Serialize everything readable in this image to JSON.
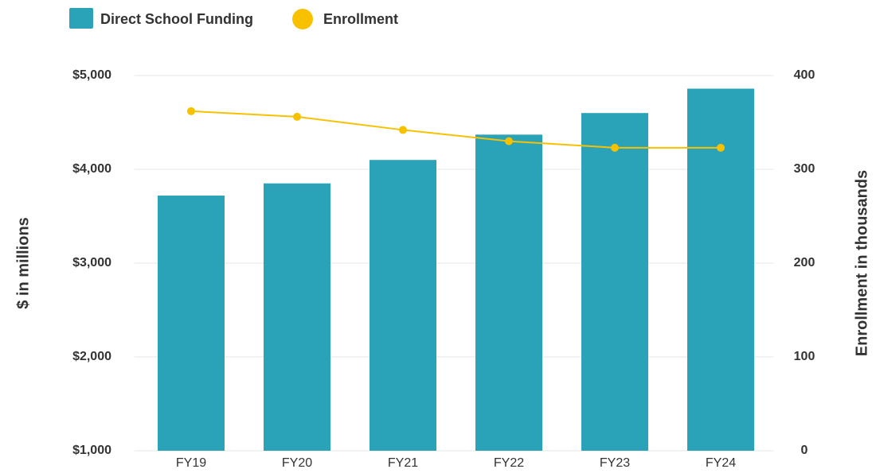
{
  "chart_data": {
    "type": "bar_line",
    "categories": [
      "FY19",
      "FY20",
      "FY21",
      "FY22",
      "FY23",
      "FY24"
    ],
    "series": [
      {
        "name": "Direct School Funding",
        "type": "bar",
        "color": "#2aa3b9",
        "axis": "y",
        "values": [
          3720,
          3850,
          4100,
          4370,
          4600,
          4860
        ]
      },
      {
        "name": "Enrollment",
        "type": "line",
        "color": "#f7c100",
        "axis": "y2",
        "values": [
          362,
          356,
          342,
          330,
          323,
          323
        ]
      }
    ],
    "ylabel": "$ in millions",
    "y2label": "Enrollment in thousands",
    "ylim": [
      1000,
      5000
    ],
    "yticks": [
      {
        "value": 1000,
        "label": "$1,000"
      },
      {
        "value": 2000,
        "label": "$2,000"
      },
      {
        "value": 3000,
        "label": "$3,000"
      },
      {
        "value": 4000,
        "label": "$4,000"
      },
      {
        "value": 5000,
        "label": "$5,000"
      }
    ],
    "y2lim": [
      0,
      400
    ],
    "y2ticks": [
      0,
      100,
      200,
      300,
      400
    ],
    "grid": true,
    "legend": "top-left"
  }
}
